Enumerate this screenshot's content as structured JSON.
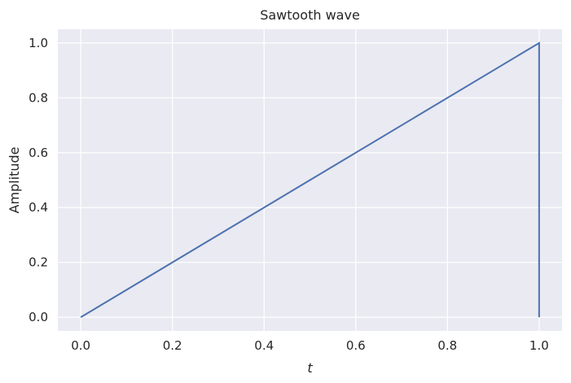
{
  "chart_data": {
    "type": "line",
    "title": "Sawtooth wave",
    "xlabel": "t",
    "ylabel": "Amplitude",
    "xlim": [
      -0.05,
      1.05
    ],
    "ylim": [
      -0.05,
      1.05
    ],
    "xticks": [
      0.0,
      0.2,
      0.4,
      0.6,
      0.8,
      1.0
    ],
    "xtick_labels": [
      "0.0",
      "0.2",
      "0.4",
      "0.6",
      "0.8",
      "1.0"
    ],
    "yticks": [
      0.0,
      0.2,
      0.4,
      0.6,
      0.8,
      1.0
    ],
    "ytick_labels": [
      "0.0",
      "0.2",
      "0.4",
      "0.6",
      "0.8",
      "1.0"
    ],
    "grid": true,
    "series": [
      {
        "color": "#4c72b0",
        "x": [
          0.0,
          1.0,
          1.0
        ],
        "y": [
          0.0,
          1.0,
          0.0
        ]
      }
    ],
    "colors": {
      "plot_background": "#eaeaf2",
      "grid": "#ffffff",
      "text": "#262626"
    }
  }
}
